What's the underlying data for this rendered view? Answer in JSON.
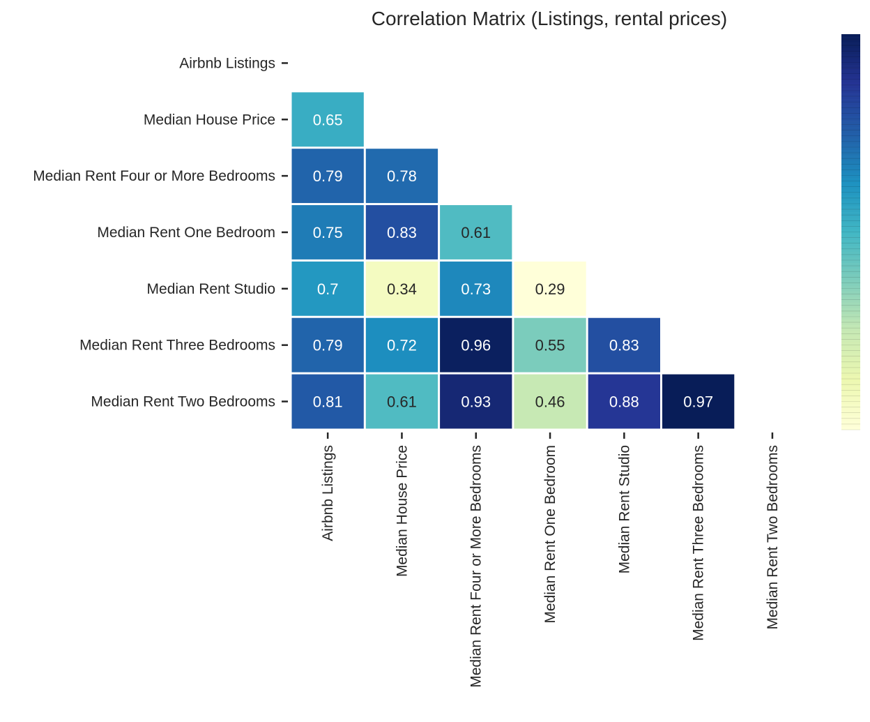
{
  "chart_data": {
    "type": "heatmap",
    "title": "Correlation Matrix (Listings, rental prices)",
    "xlabel": "",
    "ylabel": "",
    "variables": [
      "Airbnb Listings",
      "Median House Price",
      "Median Rent Four or More Bedrooms",
      "Median Rent One Bedroom",
      "Median Rent Studio",
      "Median Rent Three Bedrooms",
      "Median Rent Two Bedrooms"
    ],
    "mask": "upper-triangle-including-diagonal",
    "values": [
      [
        null,
        null,
        null,
        null,
        null,
        null,
        null
      ],
      [
        0.65,
        null,
        null,
        null,
        null,
        null,
        null
      ],
      [
        0.79,
        0.78,
        null,
        null,
        null,
        null,
        null
      ],
      [
        0.75,
        0.83,
        0.61,
        null,
        null,
        null,
        null
      ],
      [
        0.7,
        0.34,
        0.73,
        0.29,
        null,
        null,
        null
      ],
      [
        0.79,
        0.72,
        0.96,
        0.55,
        0.83,
        null,
        null
      ],
      [
        0.81,
        0.61,
        0.93,
        0.46,
        0.88,
        0.97,
        null
      ]
    ],
    "colormap": "YlGnBu",
    "colorbar": {
      "placement": "right",
      "tick_labels": []
    },
    "grid": false
  }
}
